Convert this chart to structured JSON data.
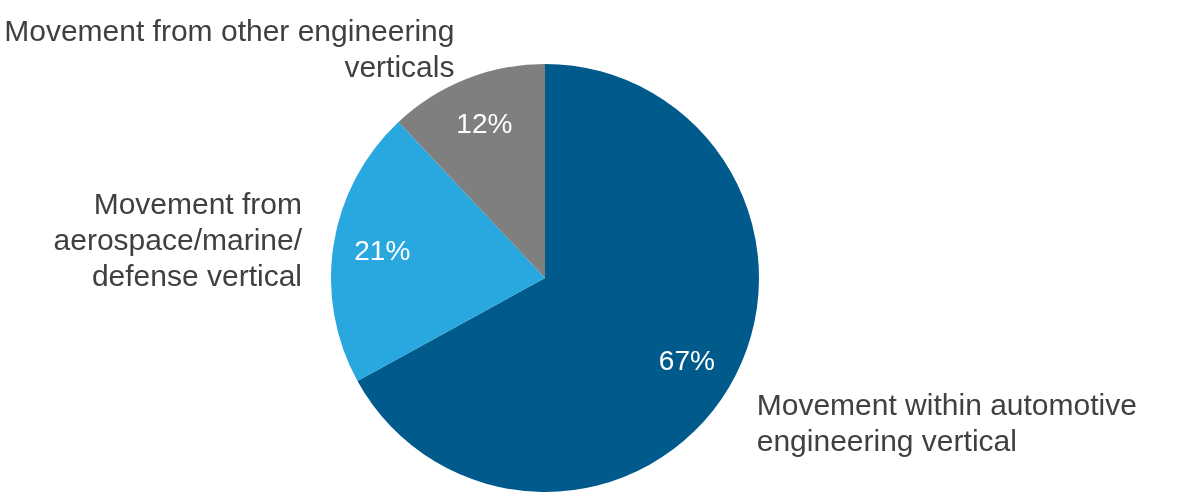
{
  "chart_data": {
    "type": "pie",
    "categories": [
      "Movement within automotive engineering vertical",
      "Movement from aerospace/marine/ defense vertical",
      "Movement from other engineering verticals"
    ],
    "values": [
      67,
      21,
      12
    ],
    "colors": [
      "#005a8c",
      "#29a8e0",
      "#7f7f7f"
    ],
    "value_labels": [
      "67%",
      "21%",
      "12%"
    ],
    "legend": false
  }
}
